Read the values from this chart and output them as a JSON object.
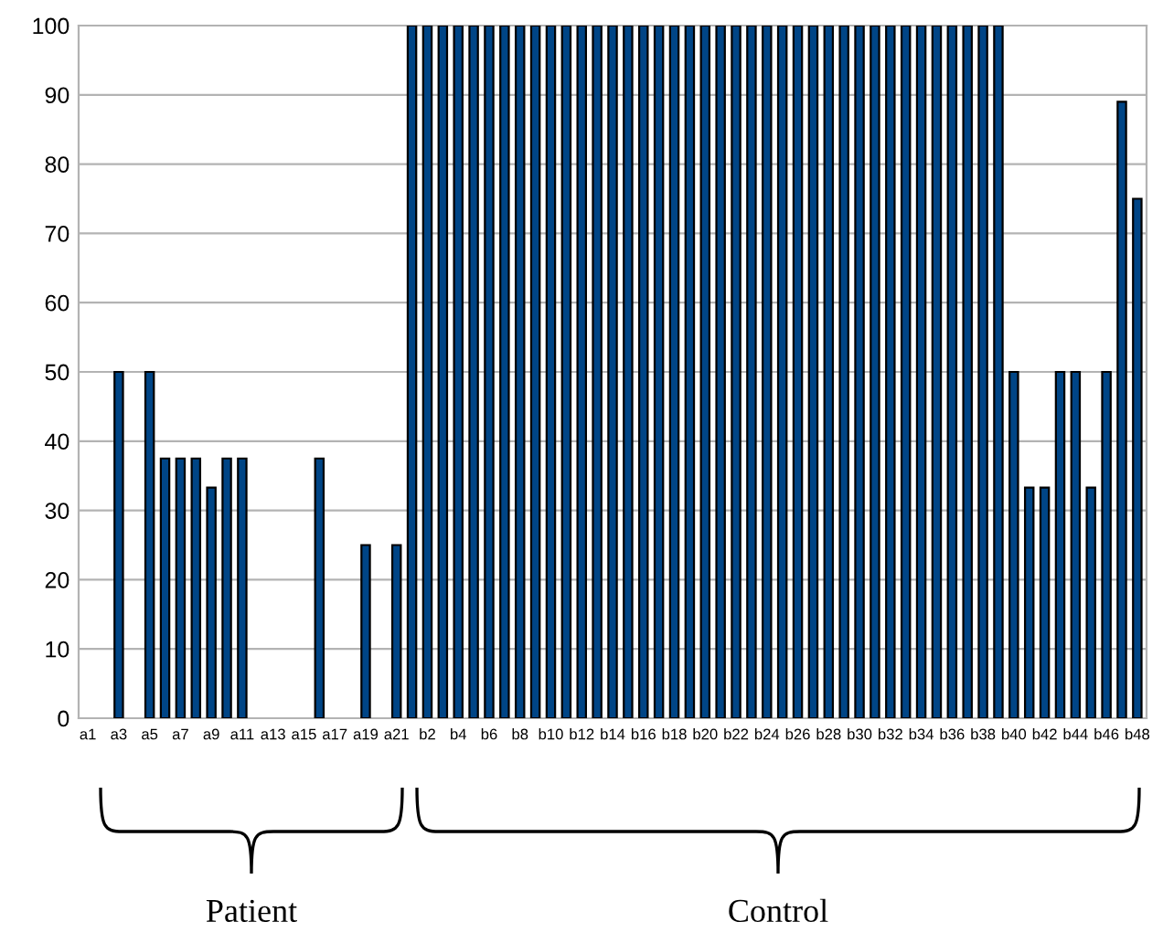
{
  "chart_data": {
    "type": "bar",
    "categories": [
      "a1",
      null,
      "a3",
      null,
      "a5",
      null,
      "a7",
      null,
      "a9",
      null,
      "a11",
      null,
      "a13",
      null,
      "a15",
      null,
      "a17",
      null,
      "a19",
      null,
      "a21",
      null,
      "b2",
      null,
      "b4",
      null,
      "b6",
      null,
      "b8",
      null,
      "b10",
      null,
      "b12",
      null,
      "b14",
      null,
      "b16",
      null,
      "b18",
      null,
      "b20",
      null,
      "b22",
      null,
      "b24",
      null,
      "b26",
      null,
      "b28",
      null,
      "b30",
      null,
      "b32",
      null,
      "b34",
      null,
      "b36",
      null,
      "b38",
      null,
      "b40",
      null,
      "b42",
      null,
      "b44",
      null,
      "b46",
      null,
      "b48"
    ],
    "values": [
      0,
      0,
      50,
      0,
      50,
      37.5,
      37.5,
      37.5,
      33.3,
      37.5,
      37.5,
      0,
      0,
      0,
      0,
      37.5,
      0,
      0,
      25,
      0,
      25,
      100,
      100,
      100,
      100,
      100,
      100,
      100,
      100,
      100,
      100,
      100,
      100,
      100,
      100,
      100,
      100,
      100,
      100,
      100,
      100,
      100,
      100,
      100,
      100,
      100,
      100,
      100,
      100,
      100,
      100,
      100,
      100,
      100,
      100,
      100,
      100,
      100,
      100,
      100,
      50,
      33.3,
      33.3,
      50,
      50,
      33.3,
      50,
      89,
      75
    ],
    "color": "#004586",
    "ylim": [
      0,
      100
    ],
    "yticks": [
      0,
      10,
      20,
      30,
      40,
      50,
      60,
      70,
      80,
      90,
      100
    ],
    "grid": "y",
    "annotations": [
      "Patient",
      "Control"
    ]
  }
}
